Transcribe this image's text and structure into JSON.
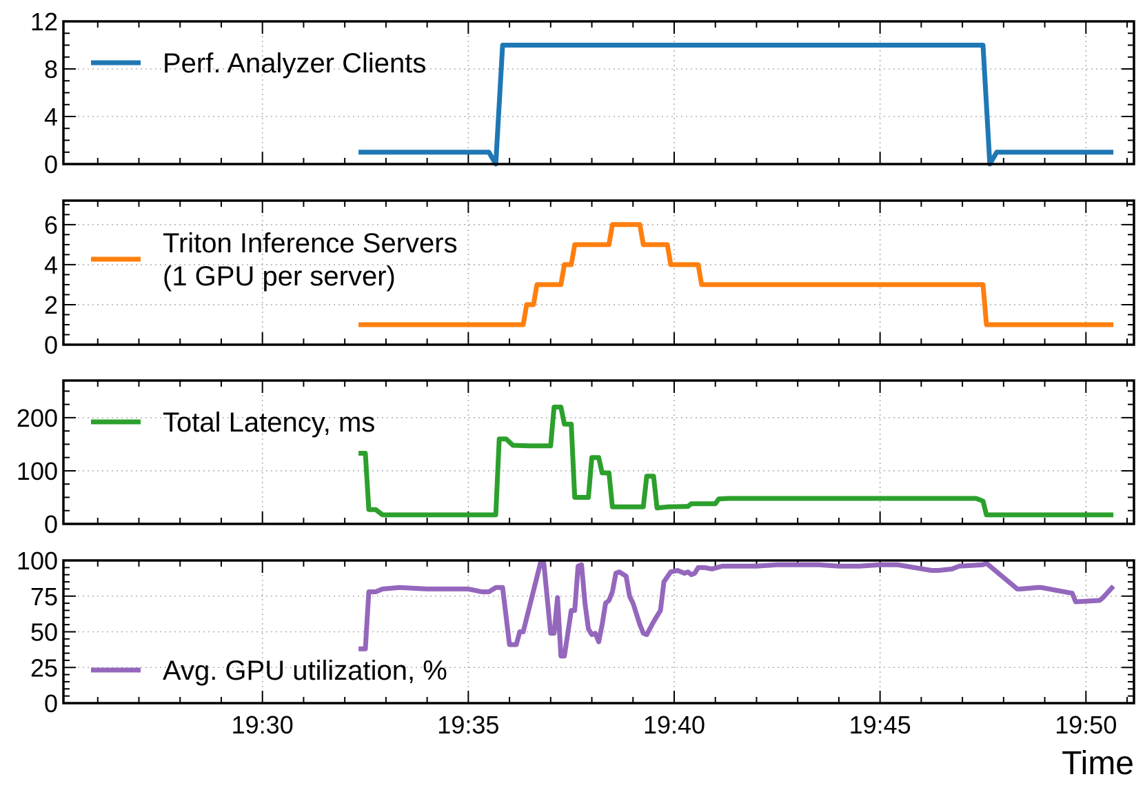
{
  "chart_data": {
    "type": "line",
    "xlabel": "Time",
    "x_axis": {
      "unit": "minutes",
      "range": [
        "19:25:10",
        "19:51:10"
      ],
      "ticks": [
        {
          "t": "19:30",
          "label": "19:30"
        },
        {
          "t": "19:35",
          "label": "19:35"
        },
        {
          "t": "19:40",
          "label": "19:40"
        },
        {
          "t": "19:45",
          "label": "19:45"
        },
        {
          "t": "19:50",
          "label": "19:50"
        }
      ]
    },
    "grid": true,
    "legend_position": "top-left",
    "panels": [
      {
        "name": "clients",
        "ylim": [
          0,
          12
        ],
        "yticks": [
          {
            "v": 0,
            "label": "0"
          },
          {
            "v": 4,
            "label": "4"
          },
          {
            "v": 8,
            "label": "8"
          },
          {
            "v": 12,
            "label": "12"
          }
        ],
        "yminor_step": 1,
        "legend": {
          "lines": [
            "Perf. Analyzer Clients"
          ],
          "position": "top-left"
        },
        "series": {
          "name": "Perf. Analyzer Clients",
          "color": "#1f77b4",
          "x": [
            "19:32:20",
            "19:35:30",
            "19:35:40",
            "19:35:50",
            "19:47:30",
            "19:47:40",
            "19:47:50",
            "19:50:40"
          ],
          "y": [
            1,
            1,
            0,
            10,
            10,
            0,
            1,
            1
          ]
        }
      },
      {
        "name": "servers",
        "ylim": [
          0,
          7.2
        ],
        "yticks": [
          {
            "v": 0,
            "label": "0"
          },
          {
            "v": 2,
            "label": "2"
          },
          {
            "v": 4,
            "label": "4"
          },
          {
            "v": 6,
            "label": "6"
          }
        ],
        "yminor_step": 0.5,
        "legend": {
          "lines": [
            "Triton Inference Servers",
            "(1 GPU per server)"
          ],
          "position": "top-left"
        },
        "series": {
          "name": "Triton Inference Servers (1 GPU per server)",
          "color": "#ff7f0e",
          "x": [
            "19:32:20",
            "19:36:20",
            "19:36:25",
            "19:36:35",
            "19:36:40",
            "19:37:15",
            "19:37:20",
            "19:37:30",
            "19:37:35",
            "19:38:25",
            "19:38:30",
            "19:39:10",
            "19:39:15",
            "19:39:50",
            "19:39:55",
            "19:40:35",
            "19:40:40",
            "19:47:30",
            "19:47:35",
            "19:50:40"
          ],
          "y": [
            1,
            1,
            2,
            2,
            3,
            3,
            4,
            4,
            5,
            5,
            6,
            6,
            5,
            5,
            4,
            4,
            3,
            3,
            1,
            1
          ]
        }
      },
      {
        "name": "latency",
        "ylim": [
          0,
          270
        ],
        "yticks": [
          {
            "v": 0,
            "label": "0"
          },
          {
            "v": 100,
            "label": "100"
          },
          {
            "v": 200,
            "label": "200"
          }
        ],
        "yminor_step": 25,
        "legend": {
          "lines": [
            "Total Latency, ms"
          ],
          "position": "top-left"
        },
        "series": {
          "name": "Total Latency, ms",
          "color": "#2ca02c",
          "x": [
            "19:32:20",
            "19:32:30",
            "19:32:35",
            "19:32:45",
            "19:32:55",
            "19:34:00",
            "19:35:00",
            "19:35:40",
            "19:35:45",
            "19:35:55",
            "19:36:05",
            "19:36:30",
            "19:37:00",
            "19:37:05",
            "19:37:15",
            "19:37:20",
            "19:37:30",
            "19:37:35",
            "19:37:55",
            "19:38:00",
            "19:38:10",
            "19:38:15",
            "19:38:25",
            "19:38:30",
            "19:39:15",
            "19:39:20",
            "19:39:30",
            "19:39:35",
            "19:39:50",
            "19:40:20",
            "19:40:25",
            "19:41:00",
            "19:41:05",
            "19:41:20",
            "19:47:20",
            "19:47:30",
            "19:47:35",
            "19:50:40"
          ],
          "y": [
            133,
            133,
            27,
            27,
            17,
            17,
            17,
            17,
            160,
            160,
            148,
            147,
            147,
            220,
            220,
            188,
            188,
            50,
            50,
            125,
            125,
            96,
            96,
            32,
            32,
            90,
            90,
            30,
            32,
            33,
            38,
            38,
            47,
            48,
            48,
            43,
            17,
            17
          ]
        }
      },
      {
        "name": "gpu",
        "ylim": [
          0,
          100
        ],
        "yticks": [
          {
            "v": 0,
            "label": "0"
          },
          {
            "v": 25,
            "label": "25"
          },
          {
            "v": 50,
            "label": "50"
          },
          {
            "v": 75,
            "label": "75"
          },
          {
            "v": 100,
            "label": "100"
          }
        ],
        "yminor_step": 5,
        "legend": {
          "lines": [
            "Avg. GPU utilization, %"
          ],
          "position": "bottom-left"
        },
        "series": {
          "name": "Avg. GPU utilization, %",
          "color": "#9467bd",
          "x": [
            "19:32:20",
            "19:32:30",
            "19:32:35",
            "19:32:45",
            "19:32:55",
            "19:33:20",
            "19:34:00",
            "19:35:00",
            "19:35:20",
            "19:35:30",
            "19:35:40",
            "19:35:50",
            "19:36:00",
            "19:36:10",
            "19:36:15",
            "19:36:20",
            "19:36:45",
            "19:36:50",
            "19:37:00",
            "19:37:05",
            "19:37:10",
            "19:37:15",
            "19:37:20",
            "19:37:30",
            "19:37:35",
            "19:37:40",
            "19:37:45",
            "19:37:50",
            "19:37:55",
            "19:38:00",
            "19:38:05",
            "19:38:10",
            "19:38:15",
            "19:38:20",
            "19:38:25",
            "19:38:30",
            "19:38:35",
            "19:38:40",
            "19:38:50",
            "19:38:55",
            "19:39:00",
            "19:39:10",
            "19:39:15",
            "19:39:20",
            "19:39:30",
            "19:39:40",
            "19:39:45",
            "19:39:55",
            "19:40:05",
            "19:40:15",
            "19:40:20",
            "19:40:25",
            "19:40:30",
            "19:40:35",
            "19:40:45",
            "19:40:55",
            "19:41:10",
            "19:42:00",
            "19:42:30",
            "19:43:30",
            "19:44:00",
            "19:44:30",
            "19:45:00",
            "19:45:15",
            "19:45:25",
            "19:46:15",
            "19:46:25",
            "19:46:45",
            "19:46:55",
            "19:47:30",
            "19:47:35",
            "19:48:20",
            "19:48:25",
            "19:48:50",
            "19:48:55",
            "19:49:40",
            "19:49:45",
            "19:50:20",
            "19:50:25",
            "19:50:40"
          ],
          "y": [
            38,
            38,
            78,
            78,
            80,
            81,
            80,
            80,
            78,
            78,
            81,
            81,
            41,
            41,
            50,
            50,
            98,
            98,
            49,
            49,
            74,
            33,
            33,
            65,
            65,
            96,
            97,
            70,
            52,
            48,
            49,
            43,
            55,
            70,
            72,
            78,
            91,
            92,
            89,
            75,
            70,
            55,
            49,
            48,
            57,
            65,
            85,
            92,
            93,
            91,
            92,
            90,
            91,
            95,
            95,
            94,
            96,
            96,
            97,
            97,
            96,
            96,
            97,
            97,
            97,
            93,
            93,
            94,
            96,
            97,
            98,
            80,
            80,
            81,
            81,
            77,
            71,
            72,
            74,
            82
          ]
        }
      }
    ]
  }
}
